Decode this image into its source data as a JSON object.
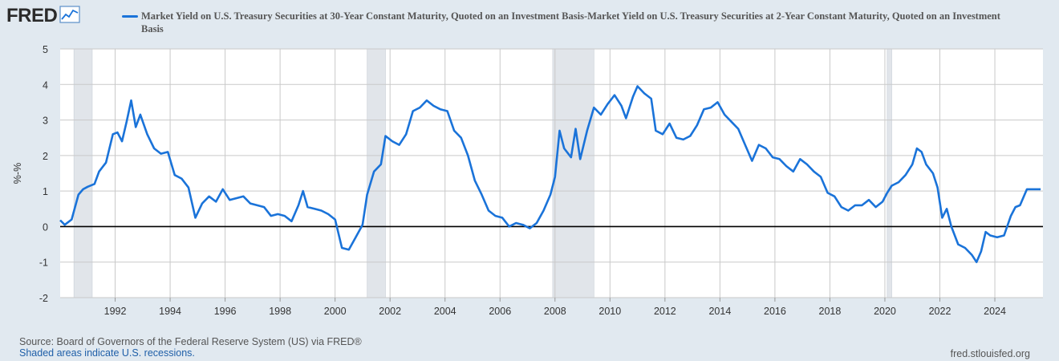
{
  "header": {
    "logo_text": "FRED",
    "logo_icon": "line-chart-icon"
  },
  "footer": {
    "source": "Source: Board of Governors of the Federal Reserve System (US) via FRED®",
    "recession_note": "Shaded areas indicate U.S. recessions.",
    "site": "fred.stlouisfed.org"
  },
  "chart_data": {
    "type": "line",
    "ylabel": "%-%",
    "ylim": [
      -2,
      5
    ],
    "yticks": [
      "-2",
      "-1",
      "0",
      "1",
      "2",
      "3",
      "4",
      "5"
    ],
    "xlim": [
      "1990-01-01",
      "2025-10-01"
    ],
    "xticks": [
      "1992",
      "1994",
      "1996",
      "1998",
      "2000",
      "2002",
      "2004",
      "2006",
      "2008",
      "2010",
      "2012",
      "2014",
      "2016",
      "2018",
      "2020",
      "2022",
      "2024"
    ],
    "grid": true,
    "legend_placement": "top",
    "line_color": "#1a73d9",
    "zero_line_color": "#000000",
    "recessions": [
      [
        "1990-07-01",
        "1991-03-01"
      ],
      [
        "2001-03-01",
        "2001-11-01"
      ],
      [
        "2007-12-01",
        "2009-06-01"
      ],
      [
        "2020-02-01",
        "2020-04-01"
      ]
    ],
    "series": [
      {
        "name": "Market Yield on U.S. Treasury Securities at 30-Year Constant Maturity, Quoted on an Investment Basis-Market Yield on U.S. Treasury Securities at 2-Year Constant Maturity, Quoted on an Investment Basis",
        "points": [
          [
            "1990-01-01",
            0.18
          ],
          [
            "1990-03-01",
            0.05
          ],
          [
            "1990-06-01",
            0.2
          ],
          [
            "1990-09-01",
            0.9
          ],
          [
            "1990-11-01",
            1.05
          ],
          [
            "1991-01-01",
            1.12
          ],
          [
            "1991-04-01",
            1.2
          ],
          [
            "1991-06-01",
            1.55
          ],
          [
            "1991-09-01",
            1.8
          ],
          [
            "1991-12-01",
            2.6
          ],
          [
            "1992-02-01",
            2.65
          ],
          [
            "1992-04-01",
            2.4
          ],
          [
            "1992-06-01",
            2.95
          ],
          [
            "1992-08-01",
            3.55
          ],
          [
            "1992-10-01",
            2.8
          ],
          [
            "1992-12-01",
            3.15
          ],
          [
            "1993-03-01",
            2.6
          ],
          [
            "1993-06-01",
            2.2
          ],
          [
            "1993-09-01",
            2.05
          ],
          [
            "1993-12-01",
            2.1
          ],
          [
            "1994-03-01",
            1.45
          ],
          [
            "1994-06-01",
            1.35
          ],
          [
            "1994-09-01",
            1.1
          ],
          [
            "1994-12-01",
            0.25
          ],
          [
            "1995-03-01",
            0.65
          ],
          [
            "1995-06-01",
            0.85
          ],
          [
            "1995-09-01",
            0.7
          ],
          [
            "1995-12-01",
            1.05
          ],
          [
            "1996-03-01",
            0.75
          ],
          [
            "1996-06-01",
            0.8
          ],
          [
            "1996-09-01",
            0.85
          ],
          [
            "1996-12-01",
            0.65
          ],
          [
            "1997-03-01",
            0.6
          ],
          [
            "1997-06-01",
            0.55
          ],
          [
            "1997-09-01",
            0.3
          ],
          [
            "1997-12-01",
            0.35
          ],
          [
            "1998-03-01",
            0.3
          ],
          [
            "1998-06-01",
            0.15
          ],
          [
            "1998-09-01",
            0.6
          ],
          [
            "1998-11-01",
            1.0
          ],
          [
            "1999-01-01",
            0.55
          ],
          [
            "1999-04-01",
            0.5
          ],
          [
            "1999-07-01",
            0.45
          ],
          [
            "1999-10-01",
            0.35
          ],
          [
            "2000-01-01",
            0.2
          ],
          [
            "2000-04-01",
            -0.6
          ],
          [
            "2000-07-01",
            -0.65
          ],
          [
            "2000-10-01",
            -0.3
          ],
          [
            "2001-01-01",
            0.05
          ],
          [
            "2001-03-01",
            0.9
          ],
          [
            "2001-06-01",
            1.55
          ],
          [
            "2001-09-01",
            1.75
          ],
          [
            "2001-11-01",
            2.55
          ],
          [
            "2002-02-01",
            2.4
          ],
          [
            "2002-05-01",
            2.3
          ],
          [
            "2002-08-01",
            2.6
          ],
          [
            "2002-11-01",
            3.25
          ],
          [
            "2003-02-01",
            3.35
          ],
          [
            "2003-05-01",
            3.55
          ],
          [
            "2003-08-01",
            3.4
          ],
          [
            "2003-11-01",
            3.3
          ],
          [
            "2004-02-01",
            3.25
          ],
          [
            "2004-05-01",
            2.7
          ],
          [
            "2004-08-01",
            2.5
          ],
          [
            "2004-11-01",
            2.0
          ],
          [
            "2005-02-01",
            1.3
          ],
          [
            "2005-05-01",
            0.9
          ],
          [
            "2005-08-01",
            0.45
          ],
          [
            "2005-11-01",
            0.3
          ],
          [
            "2006-02-01",
            0.25
          ],
          [
            "2006-05-01",
            0.0
          ],
          [
            "2006-08-01",
            0.1
          ],
          [
            "2006-11-01",
            0.05
          ],
          [
            "2007-02-01",
            -0.05
          ],
          [
            "2007-05-01",
            0.1
          ],
          [
            "2007-08-01",
            0.45
          ],
          [
            "2007-11-01",
            0.9
          ],
          [
            "2008-01-01",
            1.4
          ],
          [
            "2008-03-01",
            2.7
          ],
          [
            "2008-05-01",
            2.2
          ],
          [
            "2008-08-01",
            1.95
          ],
          [
            "2008-10-01",
            2.75
          ],
          [
            "2008-12-01",
            1.9
          ],
          [
            "2009-03-01",
            2.7
          ],
          [
            "2009-06-01",
            3.35
          ],
          [
            "2009-09-01",
            3.15
          ],
          [
            "2009-12-01",
            3.45
          ],
          [
            "2010-03-01",
            3.7
          ],
          [
            "2010-06-01",
            3.4
          ],
          [
            "2010-08-01",
            3.05
          ],
          [
            "2010-11-01",
            3.65
          ],
          [
            "2011-01-01",
            3.95
          ],
          [
            "2011-04-01",
            3.75
          ],
          [
            "2011-07-01",
            3.6
          ],
          [
            "2011-09-01",
            2.7
          ],
          [
            "2011-12-01",
            2.6
          ],
          [
            "2012-03-01",
            2.9
          ],
          [
            "2012-06-01",
            2.5
          ],
          [
            "2012-09-01",
            2.45
          ],
          [
            "2012-12-01",
            2.55
          ],
          [
            "2013-03-01",
            2.85
          ],
          [
            "2013-06-01",
            3.3
          ],
          [
            "2013-09-01",
            3.35
          ],
          [
            "2013-12-01",
            3.5
          ],
          [
            "2014-03-01",
            3.15
          ],
          [
            "2014-06-01",
            2.95
          ],
          [
            "2014-09-01",
            2.75
          ],
          [
            "2014-12-01",
            2.3
          ],
          [
            "2015-03-01",
            1.85
          ],
          [
            "2015-06-01",
            2.3
          ],
          [
            "2015-09-01",
            2.2
          ],
          [
            "2015-12-01",
            1.95
          ],
          [
            "2016-03-01",
            1.9
          ],
          [
            "2016-06-01",
            1.7
          ],
          [
            "2016-09-01",
            1.55
          ],
          [
            "2016-12-01",
            1.9
          ],
          [
            "2017-03-01",
            1.75
          ],
          [
            "2017-06-01",
            1.55
          ],
          [
            "2017-09-01",
            1.4
          ],
          [
            "2017-12-01",
            0.95
          ],
          [
            "2018-03-01",
            0.85
          ],
          [
            "2018-06-01",
            0.55
          ],
          [
            "2018-09-01",
            0.45
          ],
          [
            "2018-12-01",
            0.6
          ],
          [
            "2019-03-01",
            0.6
          ],
          [
            "2019-06-01",
            0.75
          ],
          [
            "2019-09-01",
            0.55
          ],
          [
            "2019-12-01",
            0.7
          ],
          [
            "2020-02-01",
            0.95
          ],
          [
            "2020-04-01",
            1.15
          ],
          [
            "2020-07-01",
            1.25
          ],
          [
            "2020-10-01",
            1.45
          ],
          [
            "2021-01-01",
            1.75
          ],
          [
            "2021-03-01",
            2.2
          ],
          [
            "2021-05-01",
            2.1
          ],
          [
            "2021-07-01",
            1.75
          ],
          [
            "2021-10-01",
            1.5
          ],
          [
            "2021-12-01",
            1.1
          ],
          [
            "2022-02-01",
            0.25
          ],
          [
            "2022-04-01",
            0.5
          ],
          [
            "2022-06-01",
            0.0
          ],
          [
            "2022-09-01",
            -0.5
          ],
          [
            "2022-12-01",
            -0.6
          ],
          [
            "2023-03-01",
            -0.8
          ],
          [
            "2023-05-01",
            -1.0
          ],
          [
            "2023-07-01",
            -0.7
          ],
          [
            "2023-09-01",
            -0.15
          ],
          [
            "2023-11-01",
            -0.25
          ],
          [
            "2024-02-01",
            -0.3
          ],
          [
            "2024-05-01",
            -0.25
          ],
          [
            "2024-08-01",
            0.3
          ],
          [
            "2024-10-01",
            0.55
          ],
          [
            "2024-12-01",
            0.6
          ],
          [
            "2025-03-01",
            1.05
          ],
          [
            "2025-06-01",
            1.05
          ],
          [
            "2025-09-01",
            1.05
          ]
        ]
      }
    ]
  }
}
